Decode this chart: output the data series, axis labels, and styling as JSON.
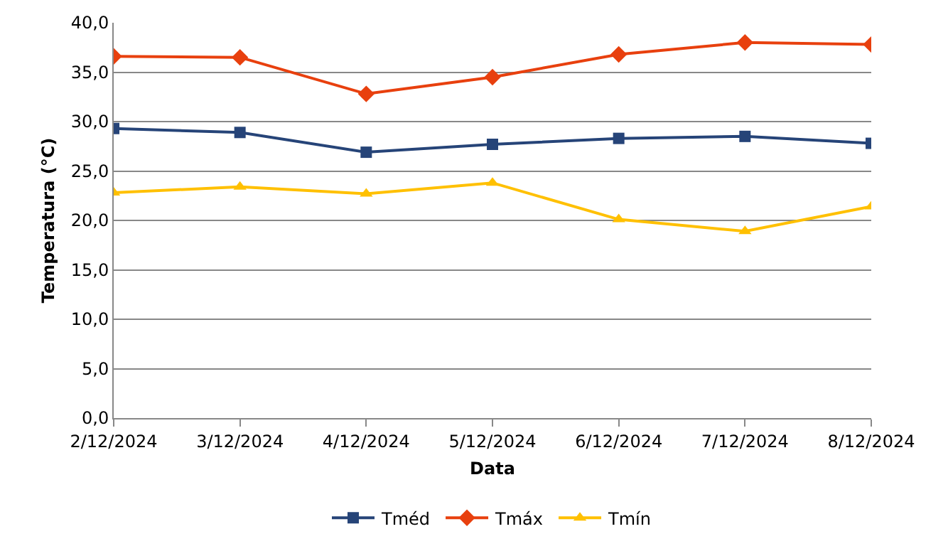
{
  "chart_data": {
    "type": "line",
    "xlabel": "Data",
    "ylabel": "Temperatura (°C)",
    "categories": [
      "2/12/2024",
      "3/12/2024",
      "4/12/2024",
      "5/12/2024",
      "6/12/2024",
      "7/12/2024",
      "8/12/2024"
    ],
    "series": [
      {
        "name": "Tméd",
        "color": "#264478",
        "marker": "square",
        "values": [
          29.3,
          28.9,
          26.9,
          27.7,
          28.3,
          28.5,
          27.8
        ]
      },
      {
        "name": "Tmáx",
        "color": "#e8400e",
        "marker": "diamond",
        "values": [
          36.6,
          36.5,
          32.8,
          34.5,
          36.8,
          38.0,
          37.8
        ]
      },
      {
        "name": "Tmín",
        "color": "#ffc000",
        "marker": "triangle",
        "values": [
          22.8,
          23.4,
          22.7,
          23.8,
          20.1,
          18.9,
          21.4
        ]
      }
    ],
    "ylim": [
      0,
      40
    ],
    "yticks": [
      {
        "value": 0,
        "label": "0,0"
      },
      {
        "value": 5,
        "label": "5,0"
      },
      {
        "value": 10,
        "label": "10,0"
      },
      {
        "value": 15,
        "label": "15,0"
      },
      {
        "value": 20,
        "label": "20,0"
      },
      {
        "value": 25,
        "label": "25,0"
      },
      {
        "value": 30,
        "label": "30,0"
      },
      {
        "value": 35,
        "label": "35,0"
      },
      {
        "value": 40,
        "label": "40,0"
      }
    ],
    "grid": "y",
    "legend": "bottom",
    "line_style": "solid"
  }
}
